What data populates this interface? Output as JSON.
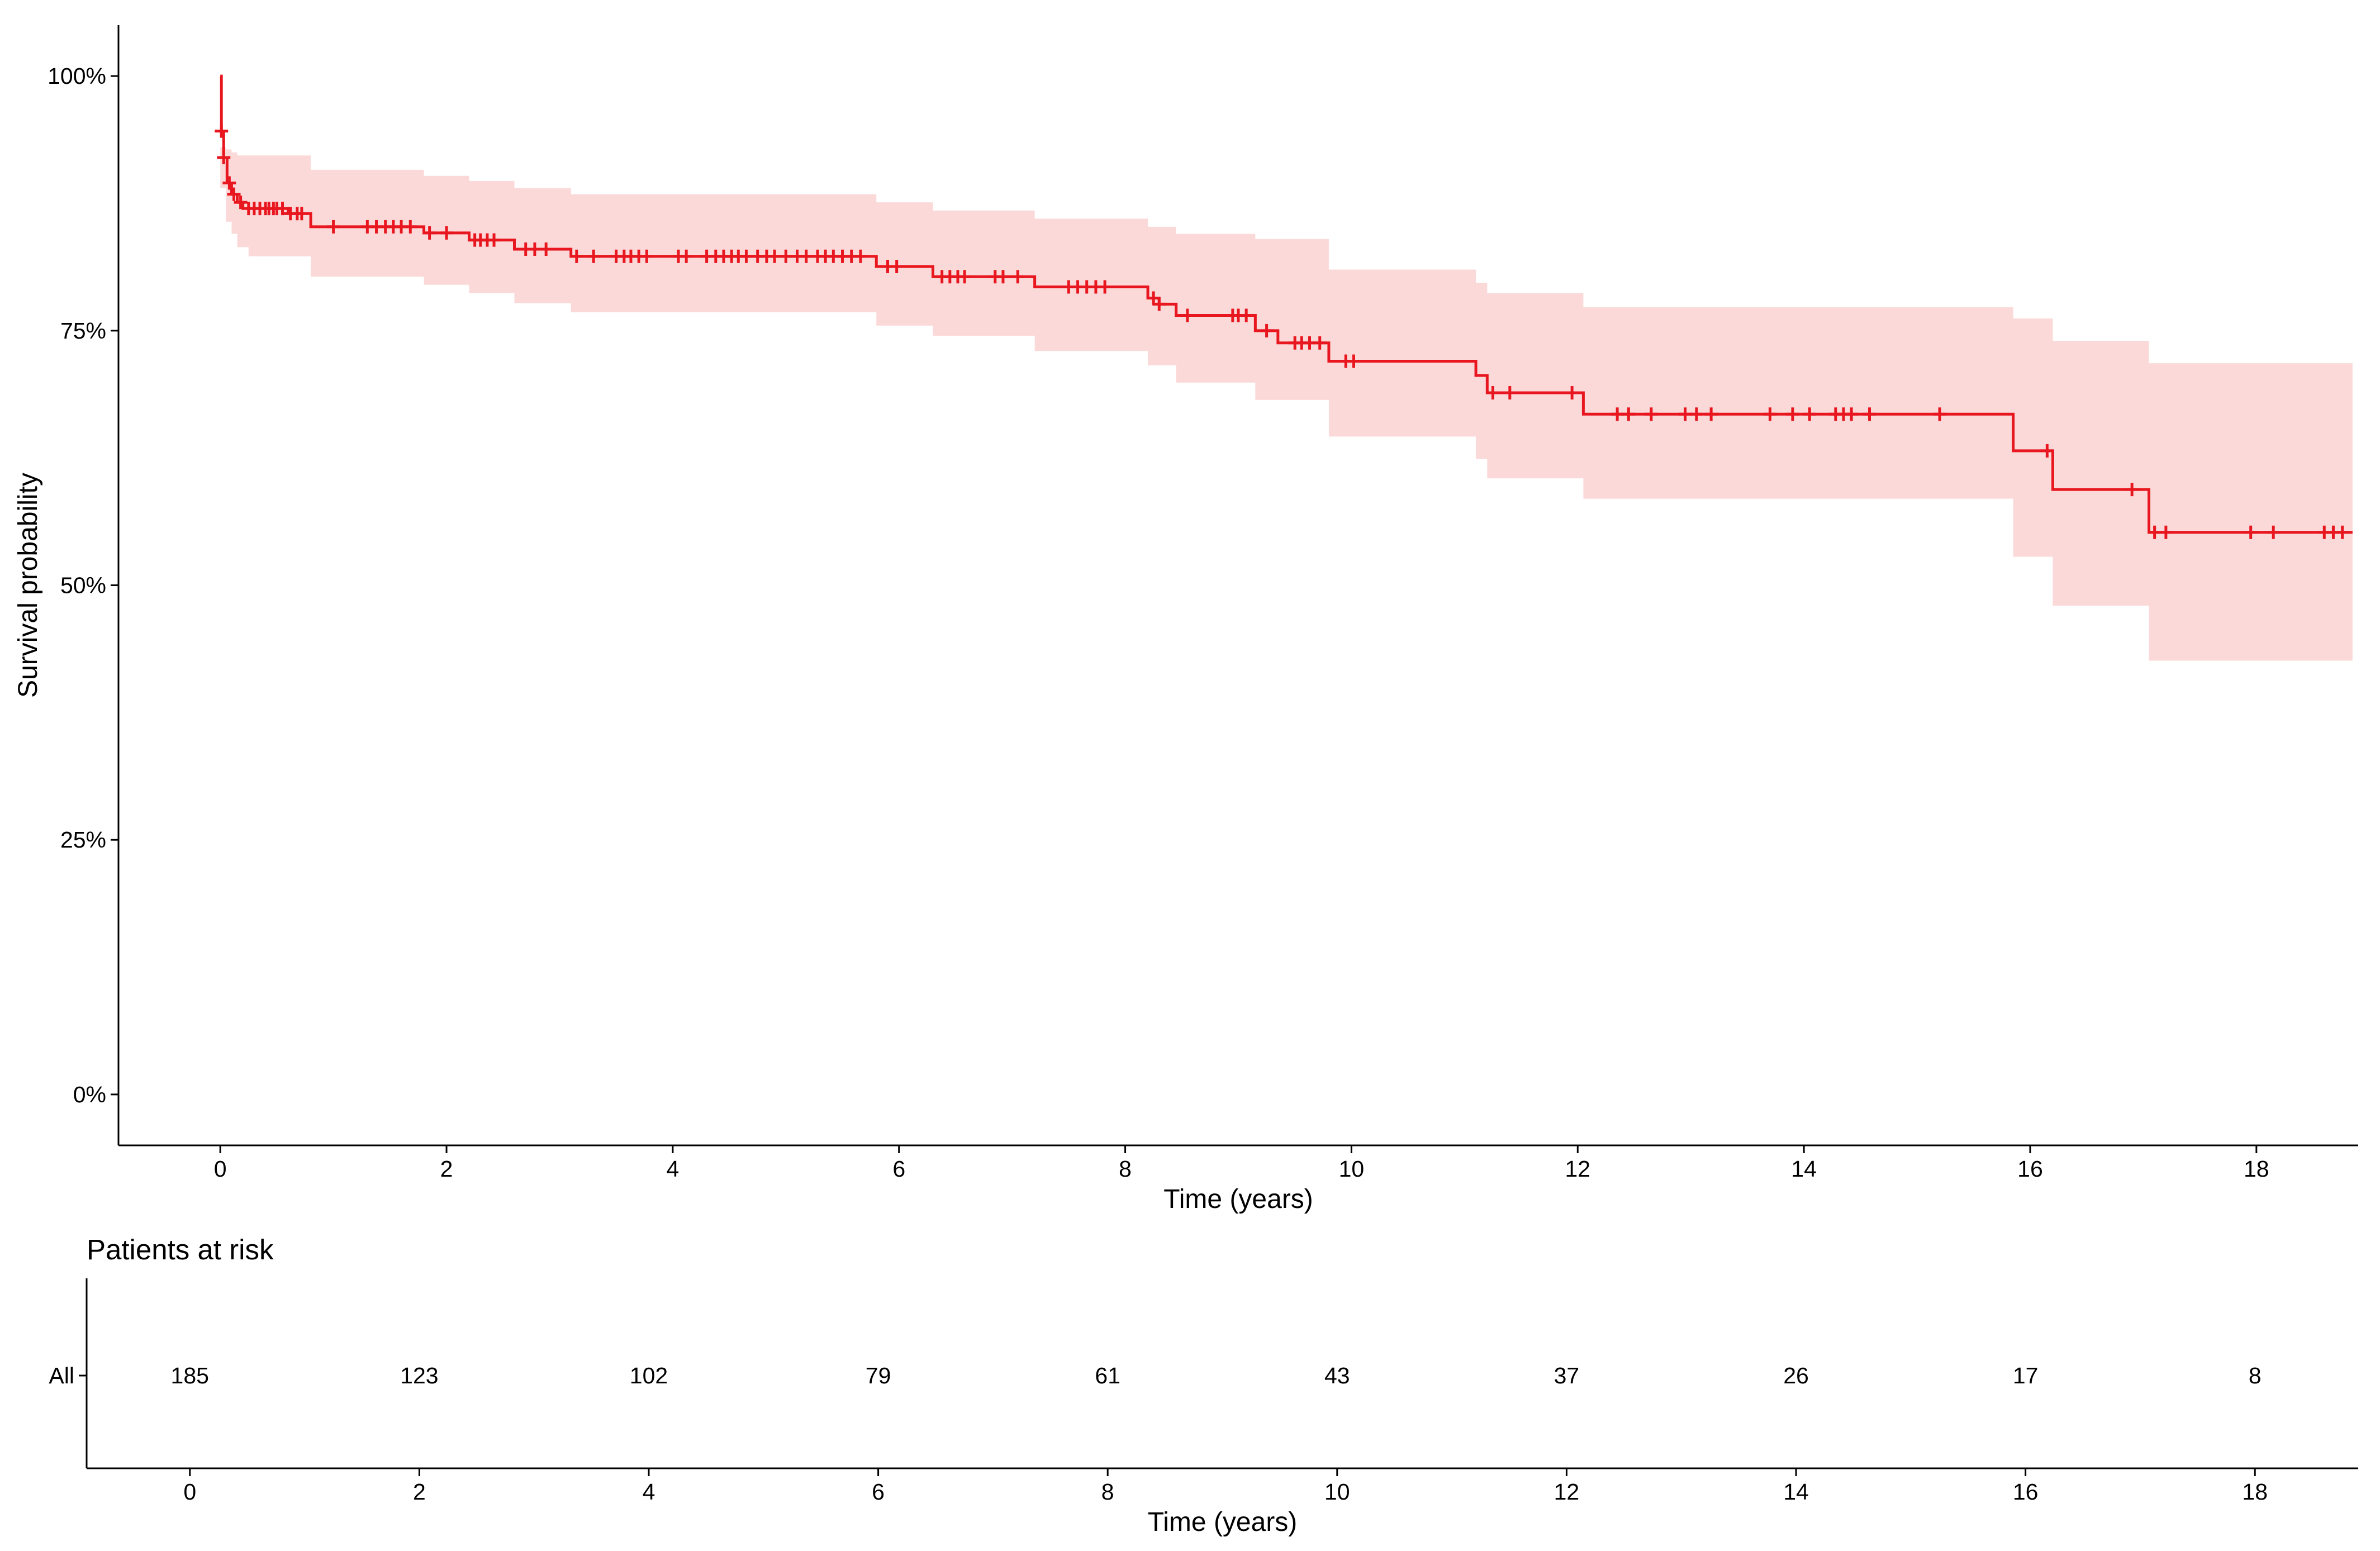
{
  "colors": {
    "curve": "#e8171f",
    "band": "#fcd9d9",
    "axis": "#000000",
    "text": "#000000"
  },
  "chart_data": [
    {
      "type": "line",
      "subtype": "kaplan-meier",
      "title": "",
      "xlabel": "Time (years)",
      "ylabel": "Survival probability",
      "xlim": [
        -0.9,
        18.9
      ],
      "ylim": [
        -0.05,
        1.05
      ],
      "x_ticks": [
        0,
        2,
        4,
        6,
        8,
        10,
        12,
        14,
        16,
        18
      ],
      "x_tick_labels": [
        "0",
        "2",
        "4",
        "6",
        "8",
        "10",
        "12",
        "14",
        "16",
        "18"
      ],
      "y_ticks": [
        0,
        0.25,
        0.5,
        0.75,
        1.0
      ],
      "y_tick_labels": [
        "0%",
        "25%",
        "50%",
        "75%",
        "100%"
      ],
      "series": [
        {
          "name": "All",
          "steps": [
            [
              0,
              1.0
            ],
            [
              0.01,
              0.946
            ],
            [
              0.03,
              0.92
            ],
            [
              0.06,
              0.895
            ],
            [
              0.1,
              0.884
            ],
            [
              0.15,
              0.876
            ],
            [
              0.2,
              0.87
            ],
            [
              0.6,
              0.865
            ],
            [
              0.8,
              0.852
            ],
            [
              1.8,
              0.846
            ],
            [
              2.2,
              0.839
            ],
            [
              2.6,
              0.83
            ],
            [
              3.1,
              0.823
            ],
            [
              5.8,
              0.813
            ],
            [
              6.3,
              0.803
            ],
            [
              7.2,
              0.793
            ],
            [
              8.2,
              0.782
            ],
            [
              8.3,
              0.776
            ],
            [
              8.45,
              0.765
            ],
            [
              9.15,
              0.75
            ],
            [
              9.35,
              0.738
            ],
            [
              9.8,
              0.72
            ],
            [
              11.1,
              0.706
            ],
            [
              11.2,
              0.689
            ],
            [
              12.05,
              0.668
            ],
            [
              15.85,
              0.632
            ],
            [
              16.2,
              0.594
            ],
            [
              17.05,
              0.552
            ],
            [
              18.85,
              0.552
            ]
          ],
          "ci_band": [
            [
              0,
              0.93,
              0.89
            ],
            [
              0.05,
              0.928,
              0.857
            ],
            [
              0.1,
              0.925,
              0.845
            ],
            [
              0.15,
              0.922,
              0.832
            ],
            [
              0.25,
              0.922,
              0.823
            ],
            [
              0.5,
              0.922,
              0.823
            ],
            [
              0.8,
              0.908,
              0.803
            ],
            [
              1.8,
              0.902,
              0.795
            ],
            [
              2.2,
              0.897,
              0.787
            ],
            [
              2.6,
              0.89,
              0.777
            ],
            [
              3.1,
              0.884,
              0.768
            ],
            [
              5.8,
              0.876,
              0.755
            ],
            [
              6.3,
              0.868,
              0.745
            ],
            [
              7.2,
              0.86,
              0.73
            ],
            [
              8.2,
              0.852,
              0.716
            ],
            [
              8.45,
              0.845,
              0.699
            ],
            [
              9.15,
              0.84,
              0.682
            ],
            [
              9.8,
              0.81,
              0.646
            ],
            [
              11.1,
              0.797,
              0.624
            ],
            [
              11.2,
              0.787,
              0.605
            ],
            [
              12.05,
              0.773,
              0.585
            ],
            [
              15.85,
              0.762,
              0.528
            ],
            [
              16.2,
              0.74,
              0.48
            ],
            [
              17.05,
              0.718,
              0.426
            ],
            [
              18.85,
              0.718,
              0.426
            ]
          ],
          "censor_times": [
            0.01,
            0.03,
            0.08,
            0.12,
            0.18,
            0.25,
            0.3,
            0.35,
            0.4,
            0.43,
            0.47,
            0.5,
            0.55,
            0.62,
            0.68,
            0.72,
            1.0,
            1.3,
            1.38,
            1.46,
            1.53,
            1.6,
            1.68,
            1.85,
            2.0,
            2.25,
            2.3,
            2.36,
            2.42,
            2.7,
            2.78,
            2.88,
            3.15,
            3.3,
            3.5,
            3.57,
            3.63,
            3.7,
            3.77,
            4.05,
            4.12,
            4.3,
            4.38,
            4.45,
            4.52,
            4.58,
            4.65,
            4.75,
            4.83,
            4.9,
            5.0,
            5.1,
            5.18,
            5.28,
            5.35,
            5.42,
            5.5,
            5.58,
            5.66,
            5.9,
            5.98,
            6.38,
            6.45,
            6.52,
            6.58,
            6.85,
            6.92,
            7.05,
            7.5,
            7.58,
            7.66,
            7.74,
            7.82,
            8.25,
            8.3,
            8.55,
            8.95,
            9.0,
            9.07,
            9.25,
            9.5,
            9.56,
            9.63,
            9.72,
            9.95,
            10.02,
            11.25,
            11.4,
            11.95,
            12.35,
            12.45,
            12.65,
            12.95,
            13.05,
            13.18,
            13.7,
            13.9,
            14.05,
            14.28,
            14.35,
            14.42,
            14.58,
            15.2,
            16.15,
            16.9,
            17.1,
            17.2,
            17.95,
            18.15,
            18.6,
            18.68,
            18.76
          ]
        }
      ]
    },
    {
      "type": "table",
      "title": "Patients at risk",
      "xlabel": "Time (years)",
      "xlim": [
        -0.9,
        18.9
      ],
      "x_ticks": [
        0,
        2,
        4,
        6,
        8,
        10,
        12,
        14,
        16,
        18
      ],
      "x_tick_labels": [
        "0",
        "2",
        "4",
        "6",
        "8",
        "10",
        "12",
        "14",
        "16",
        "18"
      ],
      "row_label": "All",
      "times": [
        0,
        2,
        4,
        6,
        8,
        10,
        12,
        14,
        16,
        18
      ],
      "counts": [
        "185",
        "123",
        "102",
        "79",
        "61",
        "43",
        "37",
        "26",
        "17",
        "8"
      ]
    }
  ]
}
